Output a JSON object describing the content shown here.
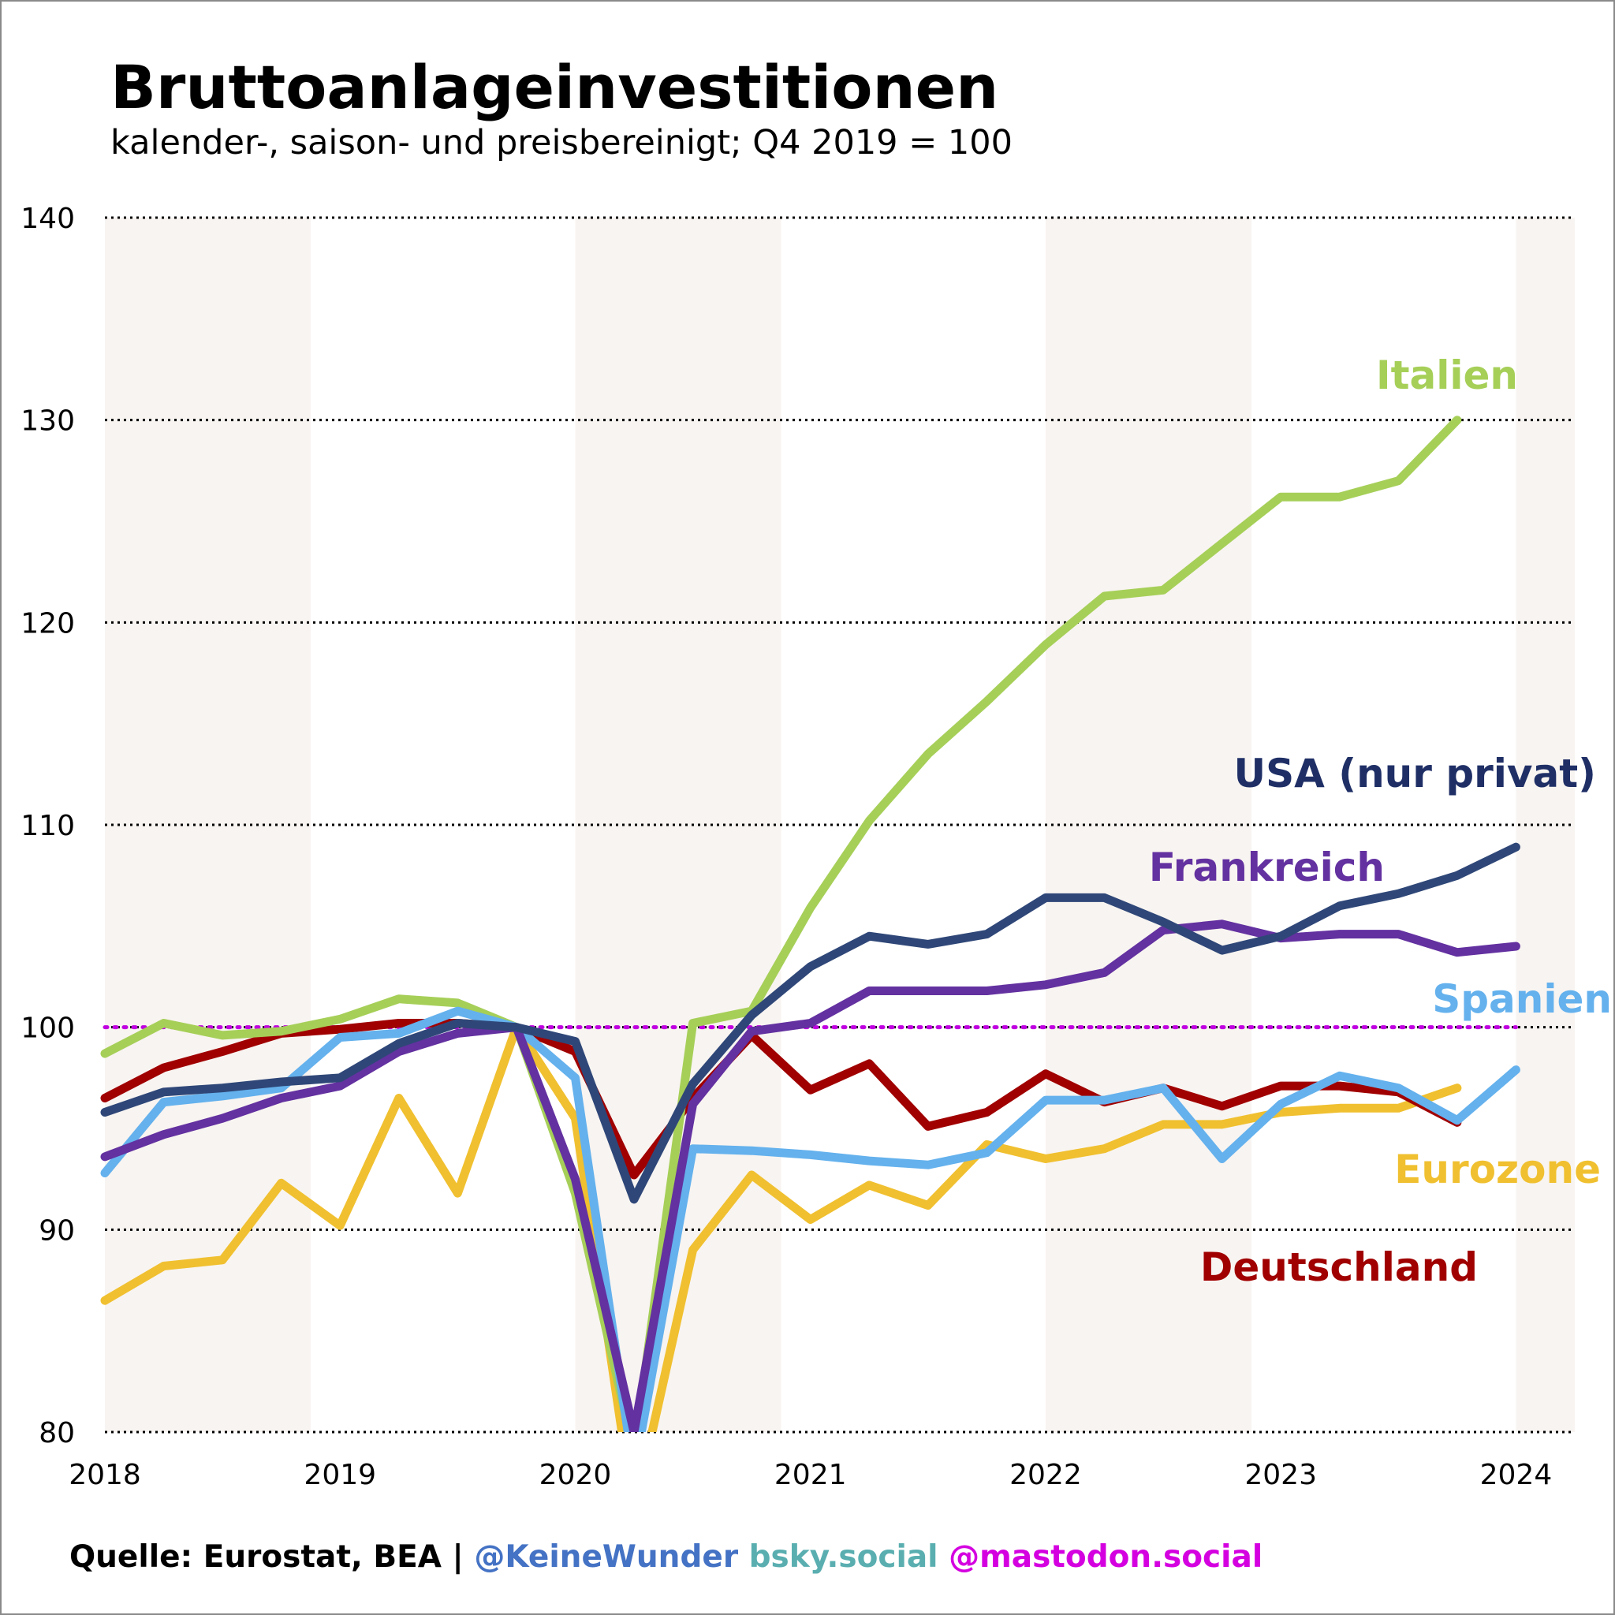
{
  "title": "Bruttoanlageinvestitionen",
  "subtitle": "kalender-, saison- und preisbereinigt; Q4 2019 = 100",
  "footer": {
    "source": "Quelle: Eurostat, BEA | ",
    "handle": "@KeineWunder",
    "bsky": " bsky.social",
    "mastodon": " @mastodon.social",
    "colors": {
      "source": "#000000",
      "handle": "#4472c4",
      "bsky": "#5aaeb0",
      "mastodon": "#d400e0"
    }
  },
  "chart_data": {
    "type": "line",
    "x_axis": {
      "min": 2018,
      "max": 2024.25,
      "ticks": [
        "2018",
        "2019",
        "2020",
        "2021",
        "2022",
        "2023",
        "2024"
      ]
    },
    "y_axis": {
      "min": 80,
      "max": 140,
      "ticks": [
        "80",
        "90",
        "100",
        "110",
        "120",
        "130",
        "140"
      ]
    },
    "grid": "horizontal dotted",
    "shaded_year_bands": [
      [
        2018,
        2018.875
      ],
      [
        2020,
        2020.875
      ],
      [
        2022,
        2022.875
      ],
      [
        2024,
        2024.25
      ]
    ],
    "band_color": "#f8f4f1",
    "reference_line": {
      "y": 100,
      "color": "#c000e0",
      "style": "dotted"
    },
    "x": [
      2018,
      2018.25,
      2018.5,
      2018.75,
      2019,
      2019.25,
      2019.5,
      2019.75,
      2020,
      2020.25,
      2020.5,
      2020.75,
      2021,
      2021.25,
      2021.5,
      2021.75,
      2022,
      2022.25,
      2022.5,
      2022.75,
      2023,
      2023.25,
      2023.5,
      2023.75,
      2024
    ],
    "series": [
      {
        "name": "Eurozone",
        "color": "#f0c030",
        "values": [
          86.5,
          88.2,
          88.5,
          92.3,
          90.2,
          96.5,
          91.8,
          100.0,
          95.5,
          76.0,
          89.0,
          92.7,
          90.5,
          92.2,
          91.2,
          94.2,
          93.5,
          94.0,
          95.2,
          95.2,
          95.8,
          96.0,
          96.0,
          97.0,
          null
        ]
      },
      {
        "name": "Deutschland",
        "color": "#a00000",
        "values": [
          96.5,
          98.0,
          98.8,
          99.7,
          99.9,
          100.2,
          100.2,
          100.0,
          98.8,
          92.7,
          96.5,
          99.6,
          96.9,
          98.2,
          95.1,
          95.8,
          97.7,
          96.3,
          97.0,
          96.1,
          97.1,
          97.1,
          96.8,
          95.3,
          null
        ]
      },
      {
        "name": "Italien",
        "color": "#a6cf58",
        "values": [
          98.7,
          100.2,
          99.6,
          99.8,
          100.4,
          101.4,
          101.2,
          100.0,
          91.8,
          79.0,
          100.2,
          100.8,
          105.9,
          110.2,
          113.5,
          116.1,
          118.9,
          121.3,
          121.6,
          123.9,
          126.2,
          126.2,
          127.0,
          130.0,
          null
        ]
      },
      {
        "name": "Spanien",
        "color": "#64b1ed",
        "values": [
          92.8,
          96.3,
          96.6,
          97.0,
          99.5,
          99.7,
          100.8,
          100.0,
          97.5,
          78.0,
          94.0,
          93.9,
          93.7,
          93.4,
          93.2,
          93.8,
          96.4,
          96.4,
          97.0,
          93.5,
          96.2,
          97.6,
          97.0,
          95.4,
          97.9
        ]
      },
      {
        "name": "Frankreich",
        "color": "#6331a0",
        "values": [
          93.6,
          94.7,
          95.5,
          96.5,
          97.1,
          98.8,
          99.7,
          100.0,
          92.5,
          80.0,
          96.2,
          99.8,
          100.2,
          101.8,
          101.8,
          101.8,
          102.1,
          102.7,
          104.8,
          105.1,
          104.4,
          104.6,
          104.6,
          103.7,
          104.0
        ]
      },
      {
        "name": "USA (nur privat)",
        "color": "#2f4778",
        "values": [
          95.8,
          96.8,
          97.0,
          97.3,
          97.5,
          99.2,
          100.2,
          100.0,
          99.3,
          91.5,
          97.2,
          100.6,
          103.0,
          104.5,
          104.1,
          104.6,
          106.4,
          106.4,
          105.2,
          103.8,
          104.5,
          106.0,
          106.6,
          107.5,
          108.9
        ]
      }
    ],
    "annotations": [
      {
        "text": "Italien",
        "color": "#a6cf58",
        "anchor": "end"
      },
      {
        "text": "USA (nur privat)",
        "color": "#1f2f66",
        "anchor": "end"
      },
      {
        "text": "Frankreich",
        "color": "#6331a0",
        "anchor": "end"
      },
      {
        "text": "Spanien",
        "color": "#64b1ed",
        "anchor": "end"
      },
      {
        "text": "Eurozone",
        "color": "#f0c030",
        "anchor": "end"
      },
      {
        "text": "Deutschland",
        "color": "#a00000",
        "anchor": "end"
      }
    ]
  }
}
